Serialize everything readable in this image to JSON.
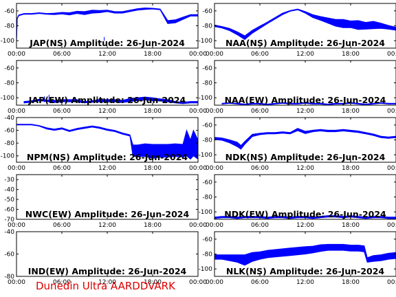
{
  "credit": "Dunedin Ultra AARDDVARK",
  "colors": {
    "trace": "#0000ff",
    "axis": "#000000",
    "title": "#000000",
    "credit": "#dd0000",
    "background": "#ffffff"
  },
  "chart_data": [
    {
      "type": "line",
      "title": "JAP(NS) Amplitude: 26-Jun-2024",
      "xlabel": "",
      "ylabel": "",
      "xticks": [
        "00:00",
        "06:00",
        "12:00",
        "18:00",
        "00:00"
      ],
      "xlim": [
        0,
        24
      ],
      "ylim": [
        -110,
        -50
      ],
      "yticks": [
        -100,
        -80,
        -60
      ],
      "grid": false,
      "series": [
        {
          "x": [
            0,
            0.1,
            0.3,
            1,
            2,
            3,
            4,
            5,
            6,
            7,
            8,
            9,
            10,
            11,
            12,
            12.5,
            13,
            14,
            15,
            16,
            17,
            18,
            19,
            20,
            21,
            22,
            23,
            24
          ],
          "y": [
            -100,
            -70,
            -66,
            -64,
            -64,
            -63,
            -64,
            -64,
            -63,
            -64,
            -62,
            -63,
            -61,
            -61,
            -60,
            -61,
            -62,
            -62,
            -60,
            -58,
            -57,
            -57,
            -58,
            -75,
            -74,
            -70,
            -66,
            -66
          ],
          "band": [
            1,
            1,
            1,
            1,
            1,
            1,
            1,
            2,
            2,
            3,
            3,
            4,
            4,
            3,
            2,
            2,
            2,
            2,
            2,
            2,
            2,
            1,
            1,
            4,
            4,
            3,
            2,
            2
          ]
        }
      ],
      "spikes": [
        {
          "x": 11.6,
          "y_low": -95
        }
      ]
    },
    {
      "type": "line",
      "title": "NAA(NS) Amplitude: 26-Jun-2024",
      "xlabel": "",
      "ylabel": "",
      "xticks": [
        "00:00",
        "06:00",
        "12:00",
        "18:00",
        "00:00"
      ],
      "xlim": [
        0,
        24
      ],
      "ylim": [
        -110,
        -50
      ],
      "yticks": [
        -100,
        -80,
        -60
      ],
      "grid": false,
      "series": [
        {
          "x": [
            0,
            1,
            2,
            3,
            4,
            5,
            6,
            7,
            8,
            9,
            10,
            11,
            12,
            13,
            14,
            15,
            16,
            17,
            18,
            19,
            20,
            21,
            22,
            23,
            24
          ],
          "y": [
            -80,
            -82,
            -85,
            -90,
            -96,
            -88,
            -82,
            -76,
            -70,
            -64,
            -60,
            -58,
            -62,
            -67,
            -70,
            -73,
            -76,
            -77,
            -78,
            -79,
            -80,
            -79,
            -80,
            -82,
            -84
          ],
          "band": [
            2,
            2,
            3,
            4,
            5,
            4,
            3,
            2,
            2,
            2,
            1,
            1,
            2,
            4,
            5,
            7,
            9,
            11,
            9,
            12,
            9,
            10,
            7,
            5,
            4
          ]
        }
      ]
    },
    {
      "type": "line",
      "title": "JAP(EW) Amplitude: 26-Jun-2024",
      "xlabel": "",
      "ylabel": "",
      "xticks": [
        "00:00",
        "06:00",
        "12:00",
        "18:00",
        "00:00"
      ],
      "xlim": [
        0,
        24
      ],
      "ylim": [
        -110,
        -50
      ],
      "yticks": [
        -100,
        -80,
        -60
      ],
      "grid": false,
      "series": [
        {
          "x": [
            1,
            2,
            3,
            4,
            5,
            6,
            7,
            8,
            9,
            10,
            11,
            12,
            13,
            14,
            15,
            16,
            17,
            18,
            19,
            20,
            21,
            22,
            23,
            24
          ],
          "y": [
            -106,
            -105,
            -103,
            -104,
            -105,
            -104,
            -104,
            -104,
            -106,
            -105,
            -104,
            -104,
            -104,
            -105,
            -103,
            -102,
            -101,
            -102,
            -103,
            -104,
            -106,
            -107,
            -106,
            -106
          ],
          "band": [
            2,
            2,
            2,
            2,
            3,
            3,
            3,
            3,
            2,
            2,
            3,
            3,
            3,
            3,
            4,
            4,
            4,
            4,
            3,
            3,
            2,
            2,
            2,
            2
          ]
        }
      ],
      "spikes": [
        {
          "x": 3.7,
          "y_low": -98
        },
        {
          "x": 4.3,
          "y_low": -96
        }
      ]
    },
    {
      "type": "line",
      "title": "NAA(EW) Amplitude: 26-Jun-2024",
      "xlabel": "",
      "ylabel": "",
      "xticks": [
        "00:00",
        "06:00",
        "12:00",
        "18:00",
        "00:00"
      ],
      "xlim": [
        0,
        24
      ],
      "ylim": [
        -110,
        -50
      ],
      "yticks": [
        -100,
        -80,
        -60
      ],
      "grid": false,
      "series": [
        {
          "x": [
            1,
            2,
            3,
            4,
            5,
            6,
            7,
            8,
            9,
            10,
            11,
            12,
            13,
            14,
            15,
            16,
            17,
            18,
            19,
            20,
            21,
            22,
            23,
            24
          ],
          "y": [
            -108,
            -107,
            -108,
            -109,
            -108,
            -108,
            -109,
            -108,
            -107,
            -108,
            -108,
            -107,
            -108,
            -108,
            -109,
            -108,
            -108,
            -107,
            -108,
            -109,
            -108,
            -107,
            -108,
            -108
          ],
          "band": [
            1,
            1,
            1,
            1,
            1,
            1,
            1,
            1,
            1,
            1,
            1,
            1,
            1,
            1,
            1,
            1,
            1,
            1,
            1,
            1,
            1,
            1,
            1,
            1
          ]
        }
      ]
    },
    {
      "type": "line",
      "title": "NPM(NS) Amplitude: 26-Jun-2024",
      "xlabel": "",
      "ylabel": "",
      "xticks": [
        "00:00",
        "06:00",
        "12:00",
        "18:00",
        "00:00"
      ],
      "xlim": [
        0,
        24
      ],
      "ylim": [
        -110,
        -40
      ],
      "yticks": [
        -100,
        -80,
        -60,
        -40
      ],
      "grid": false,
      "series": [
        {
          "x": [
            0,
            1,
            2,
            3,
            4,
            5,
            6,
            7,
            8,
            9,
            10,
            11,
            12,
            13,
            14,
            15,
            15.4,
            16,
            17,
            18,
            19,
            20,
            21,
            22,
            22.5,
            23,
            23.4,
            24
          ],
          "y": [
            -51,
            -51,
            -51,
            -53,
            -57,
            -59,
            -57,
            -61,
            -58,
            -56,
            -54,
            -56,
            -59,
            -61,
            -65,
            -68,
            -92,
            -92,
            -91,
            -93,
            -92,
            -92,
            -91,
            -92,
            -80,
            -90,
            -80,
            -90
          ],
          "band": [
            1,
            1,
            1,
            1,
            2,
            2,
            2,
            2,
            2,
            2,
            2,
            2,
            2,
            2,
            2,
            2,
            18,
            18,
            20,
            22,
            20,
            20,
            20,
            20,
            40,
            30,
            40,
            30
          ]
        }
      ]
    },
    {
      "type": "line",
      "title": "NDK(NS) Amplitude: 26-Jun-2024",
      "xlabel": "",
      "ylabel": "",
      "xticks": [
        "00:00",
        "06:00",
        "12:00",
        "18:00",
        "00:00"
      ],
      "xlim": [
        0,
        24
      ],
      "ylim": [
        -110,
        -50
      ],
      "yticks": [
        -100,
        -80,
        -60
      ],
      "grid": false,
      "series": [
        {
          "x": [
            0,
            1,
            2,
            3,
            3.5,
            4,
            5,
            6,
            7,
            8,
            9,
            10,
            11,
            12,
            13,
            14,
            15,
            16,
            17,
            18,
            19,
            20,
            21,
            22,
            23,
            24
          ],
          "y": [
            -78,
            -79,
            -82,
            -86,
            -90,
            -84,
            -74,
            -72,
            -71,
            -71,
            -70,
            -71,
            -66,
            -70,
            -68,
            -67,
            -68,
            -68,
            -67,
            -68,
            -69,
            -71,
            -73,
            -76,
            -77,
            -76
          ],
          "band": [
            3,
            3,
            4,
            6,
            5,
            4,
            3,
            2,
            2,
            2,
            2,
            2,
            3,
            3,
            2,
            2,
            2,
            2,
            2,
            2,
            2,
            2,
            2,
            2,
            2,
            2
          ]
        }
      ]
    },
    {
      "type": "line",
      "title": "NWC(EW) Amplitude: 26-Jun-2024",
      "xlabel": "",
      "ylabel": "",
      "xticks": [
        "00:00",
        "06:00",
        "12:00",
        "18:00",
        "00:00"
      ],
      "xlim": [
        0,
        24
      ],
      "ylim": [
        -70,
        -25
      ],
      "yticks": [
        -70,
        -60,
        -50,
        -40,
        -30
      ],
      "grid": false,
      "series": []
    },
    {
      "type": "line",
      "title": "NDK(EW) Amplitude: 26-Jun-2024",
      "xlabel": "",
      "ylabel": "",
      "xticks": [
        "00:00",
        "06:00",
        "12:00",
        "18:00",
        "00:00"
      ],
      "xlim": [
        0,
        24
      ],
      "ylim": [
        -110,
        -50
      ],
      "yticks": [
        -100,
        -80,
        -60
      ],
      "grid": false,
      "series": [
        {
          "x": [
            0,
            1,
            2,
            3,
            4,
            5,
            6,
            7,
            8,
            9,
            10,
            11,
            12,
            13,
            14,
            15,
            16,
            17,
            18,
            19,
            20,
            21,
            22,
            23,
            24
          ],
          "y": [
            -108,
            -107,
            -107,
            -108,
            -107,
            -107,
            -107,
            -108,
            -107,
            -107,
            -108,
            -107,
            -107,
            -108,
            -107,
            -106,
            -106,
            -107,
            -106,
            -107,
            -108,
            -107,
            -107,
            -108,
            -108
          ],
          "band": [
            2,
            2,
            2,
            2,
            2,
            2,
            2,
            2,
            2,
            2,
            2,
            2,
            2,
            2,
            2,
            2,
            2,
            2,
            2,
            2,
            2,
            2,
            2,
            2,
            2
          ]
        }
      ]
    },
    {
      "type": "line",
      "title": "IND(EW) Amplitude: 26-Jun-2024",
      "xlabel": "",
      "ylabel": "",
      "xticks": [
        "00:00",
        "06:00",
        "12:00",
        "18:00",
        "00:00"
      ],
      "xlim": [
        0,
        24
      ],
      "ylim": [
        -80,
        -40
      ],
      "yticks": [
        -80,
        -60,
        -40
      ],
      "grid": false,
      "series": []
    },
    {
      "type": "line",
      "title": "NLK(NS) Amplitude: 26-Jun-2024",
      "xlabel": "",
      "ylabel": "",
      "xticks": [
        "00:00",
        "06:00",
        "12:00",
        "18:00",
        "00:00"
      ],
      "xlim": [
        0,
        24
      ],
      "ylim": [
        -110,
        -50
      ],
      "yticks": [
        -100,
        -80,
        -60
      ],
      "grid": false,
      "series": [
        {
          "x": [
            0,
            1,
            2,
            3,
            4,
            5,
            6,
            7,
            8,
            9,
            10,
            11,
            12,
            13,
            14,
            15,
            16,
            17,
            18,
            19,
            19.8,
            20.2,
            21,
            22,
            23,
            24
          ],
          "y": [
            -84,
            -84,
            -85,
            -86,
            -88,
            -84,
            -82,
            -80,
            -79,
            -78,
            -77,
            -76,
            -75,
            -74,
            -72,
            -71,
            -71,
            -71,
            -72,
            -72,
            -73,
            -88,
            -86,
            -85,
            -83,
            -82
          ],
          "band": [
            6,
            6,
            8,
            10,
            14,
            12,
            10,
            10,
            10,
            10,
            10,
            10,
            10,
            9,
            9,
            8,
            8,
            8,
            8,
            8,
            8,
            6,
            8,
            8,
            8,
            8
          ]
        }
      ]
    }
  ]
}
